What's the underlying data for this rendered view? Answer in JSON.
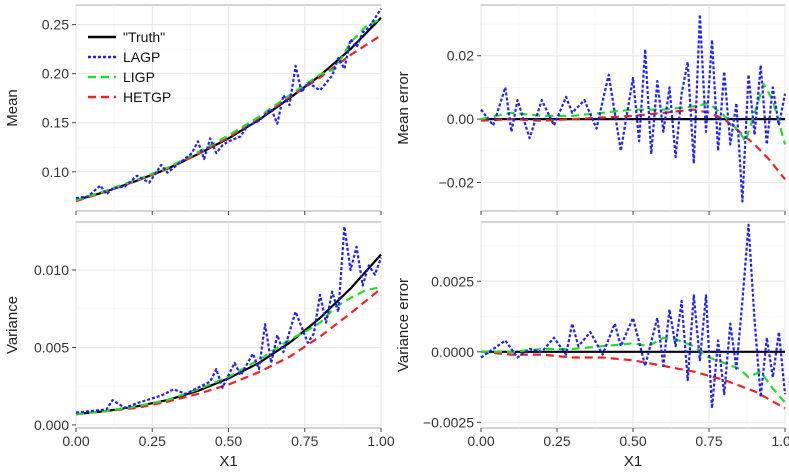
{
  "figure": {
    "xlabel": "X1",
    "colors": {
      "truth": "#000000",
      "lagp": "#1f1fff",
      "ligp": "#22dd22",
      "hetgp": "#ee2222"
    },
    "legend": [
      "\"Truth\"",
      "LAGP",
      "LIGP",
      "HETGP"
    ]
  },
  "chart_data": [
    {
      "id": "mean",
      "type": "line",
      "title": "",
      "xlabel": "",
      "ylabel": "Mean",
      "xlim": [
        0,
        1
      ],
      "ylim": [
        0.06,
        0.27
      ],
      "xticks": [
        "0.00",
        "0.25",
        "0.50",
        "0.75",
        "1.00"
      ],
      "yticks": [
        0.1,
        0.15,
        0.2,
        0.25
      ],
      "ytick_labels": [
        "0.10",
        "0.15",
        "0.20",
        "0.25"
      ],
      "grid": true,
      "legend": "top-left",
      "series": [
        {
          "name": "\"Truth\"",
          "style": "solid",
          "x": [
            0,
            0.1,
            0.2,
            0.3,
            0.4,
            0.5,
            0.6,
            0.7,
            0.8,
            0.9,
            1.0
          ],
          "values": [
            0.071,
            0.08,
            0.091,
            0.103,
            0.118,
            0.134,
            0.153,
            0.175,
            0.198,
            0.225,
            0.257
          ]
        },
        {
          "name": "LAGP",
          "style": "dotted",
          "x": [
            0,
            0.04,
            0.08,
            0.1,
            0.12,
            0.16,
            0.2,
            0.24,
            0.28,
            0.3,
            0.34,
            0.38,
            0.4,
            0.42,
            0.44,
            0.46,
            0.48,
            0.5,
            0.54,
            0.56,
            0.6,
            0.64,
            0.66,
            0.68,
            0.7,
            0.72,
            0.74,
            0.76,
            0.8,
            0.84,
            0.86,
            0.88,
            0.9,
            0.92,
            0.94,
            0.96,
            1.0
          ],
          "values": [
            0.073,
            0.075,
            0.086,
            0.077,
            0.083,
            0.085,
            0.096,
            0.089,
            0.107,
            0.099,
            0.109,
            0.119,
            0.131,
            0.113,
            0.134,
            0.119,
            0.127,
            0.131,
            0.136,
            0.146,
            0.152,
            0.164,
            0.149,
            0.178,
            0.168,
            0.208,
            0.181,
            0.191,
            0.183,
            0.198,
            0.216,
            0.205,
            0.235,
            0.227,
            0.242,
            0.247,
            0.266
          ]
        },
        {
          "name": "LIGP",
          "style": "dashed",
          "x": [
            0,
            0.1,
            0.2,
            0.3,
            0.4,
            0.5,
            0.6,
            0.7,
            0.8,
            0.85,
            0.9,
            0.95,
            1.0
          ],
          "values": [
            0.071,
            0.081,
            0.092,
            0.104,
            0.12,
            0.137,
            0.156,
            0.178,
            0.199,
            0.205,
            0.232,
            0.248,
            0.256
          ]
        },
        {
          "name": "HETGP",
          "style": "dashed",
          "x": [
            0,
            0.1,
            0.2,
            0.3,
            0.4,
            0.5,
            0.6,
            0.7,
            0.8,
            0.9,
            1.0
          ],
          "values": [
            0.07,
            0.08,
            0.091,
            0.103,
            0.118,
            0.135,
            0.155,
            0.176,
            0.196,
            0.219,
            0.239
          ]
        }
      ]
    },
    {
      "id": "mean_error",
      "type": "line",
      "title": "",
      "xlabel": "",
      "ylabel": "Mean error",
      "xlim": [
        0,
        1
      ],
      "ylim": [
        -0.029,
        0.036
      ],
      "xticks": [
        "0.00",
        "0.25",
        "0.50",
        "0.75",
        "1.00"
      ],
      "yticks": [
        -0.02,
        0.0,
        0.02
      ],
      "ytick_labels": [
        "−0.02",
        "0.00",
        "0.02"
      ],
      "grid": true,
      "series": [
        {
          "name": "\"Truth\"",
          "style": "solid",
          "x": [
            0,
            1.0
          ],
          "values": [
            0,
            0
          ]
        },
        {
          "name": "LAGP",
          "style": "dotted",
          "x": [
            0,
            0.04,
            0.08,
            0.1,
            0.12,
            0.16,
            0.2,
            0.24,
            0.28,
            0.3,
            0.34,
            0.38,
            0.42,
            0.46,
            0.5,
            0.52,
            0.54,
            0.56,
            0.58,
            0.6,
            0.62,
            0.64,
            0.66,
            0.68,
            0.7,
            0.72,
            0.74,
            0.76,
            0.78,
            0.8,
            0.82,
            0.84,
            0.86,
            0.88,
            0.9,
            0.92,
            0.94,
            0.96,
            0.98,
            1.0
          ],
          "values": [
            0.003,
            -0.002,
            0.01,
            -0.004,
            0.006,
            -0.006,
            0.006,
            -0.002,
            0.007,
            0.002,
            0.006,
            -0.003,
            0.014,
            -0.01,
            0.013,
            -0.007,
            0.022,
            -0.011,
            0.012,
            -0.004,
            0.01,
            -0.012,
            0.008,
            0.018,
            -0.014,
            0.033,
            -0.004,
            0.025,
            -0.01,
            0.015,
            -0.008,
            0.005,
            -0.026,
            0.014,
            -0.005,
            0.017,
            -0.008,
            0.01,
            -0.002,
            0.008
          ]
        },
        {
          "name": "LIGP",
          "style": "dashed",
          "x": [
            0,
            0.1,
            0.2,
            0.3,
            0.4,
            0.5,
            0.6,
            0.7,
            0.75,
            0.8,
            0.85,
            0.87,
            0.9,
            0.93,
            0.96,
            1.0
          ],
          "values": [
            0.0,
            0.002,
            0.001,
            0.001,
            0.002,
            0.003,
            0.003,
            0.004,
            0.005,
            0.001,
            -0.004,
            -0.007,
            0.002,
            0.011,
            0.006,
            -0.008
          ]
        },
        {
          "name": "HETGP",
          "style": "dashed",
          "x": [
            0,
            0.1,
            0.2,
            0.3,
            0.4,
            0.5,
            0.6,
            0.7,
            0.75,
            0.8,
            0.85,
            0.9,
            0.95,
            1.0
          ],
          "values": [
            -0.0005,
            0.0,
            -0.0005,
            0.0,
            0.0005,
            0.001,
            0.002,
            0.003,
            0.002,
            0.0,
            -0.004,
            -0.008,
            -0.013,
            -0.019
          ]
        }
      ]
    },
    {
      "id": "variance",
      "type": "line",
      "title": "",
      "xlabel": "X1",
      "ylabel": "Variance",
      "xlim": [
        0,
        1
      ],
      "ylim": [
        -0.0002,
        0.0131
      ],
      "xticks": [
        "0.00",
        "0.25",
        "0.50",
        "0.75",
        "1.00"
      ],
      "yticks": [
        0.0,
        0.005,
        0.01
      ],
      "ytick_labels": [
        "0.000",
        "0.005",
        "0.010"
      ],
      "grid": true,
      "series": [
        {
          "name": "\"Truth\"",
          "style": "solid",
          "x": [
            0,
            0.1,
            0.2,
            0.3,
            0.4,
            0.5,
            0.6,
            0.7,
            0.8,
            0.9,
            1.0
          ],
          "values": [
            0.0007,
            0.0009,
            0.0012,
            0.0016,
            0.0022,
            0.003,
            0.004,
            0.0053,
            0.0069,
            0.0088,
            0.011
          ]
        },
        {
          "name": "LAGP",
          "style": "dotted",
          "x": [
            0,
            0.1,
            0.12,
            0.16,
            0.2,
            0.28,
            0.32,
            0.36,
            0.44,
            0.46,
            0.48,
            0.52,
            0.54,
            0.58,
            0.6,
            0.62,
            0.64,
            0.66,
            0.68,
            0.72,
            0.76,
            0.78,
            0.8,
            0.82,
            0.84,
            0.86,
            0.88,
            0.9,
            0.92,
            0.94,
            0.96,
            0.98,
            1.0
          ],
          "values": [
            0.0008,
            0.001,
            0.0016,
            0.0011,
            0.0014,
            0.0019,
            0.0023,
            0.002,
            0.0028,
            0.0036,
            0.0024,
            0.004,
            0.0032,
            0.0046,
            0.0036,
            0.0065,
            0.004,
            0.0058,
            0.0047,
            0.0073,
            0.0053,
            0.0059,
            0.0084,
            0.0066,
            0.0086,
            0.0073,
            0.0128,
            0.01,
            0.0115,
            0.009,
            0.0103,
            0.0097,
            0.0108
          ]
        },
        {
          "name": "LIGP",
          "style": "dashed",
          "x": [
            0,
            0.1,
            0.2,
            0.3,
            0.4,
            0.5,
            0.6,
            0.7,
            0.75,
            0.8,
            0.85,
            0.9,
            0.95,
            1.0
          ],
          "values": [
            0.0007,
            0.0009,
            0.0012,
            0.0016,
            0.0023,
            0.0031,
            0.0042,
            0.0055,
            0.006,
            0.0066,
            0.0076,
            0.0082,
            0.0087,
            0.0089
          ]
        },
        {
          "name": "HETGP",
          "style": "dashed",
          "x": [
            0,
            0.1,
            0.2,
            0.3,
            0.4,
            0.5,
            0.6,
            0.7,
            0.8,
            0.9,
            1.0
          ],
          "values": [
            0.0007,
            0.0009,
            0.0011,
            0.0015,
            0.002,
            0.0026,
            0.0034,
            0.0044,
            0.0057,
            0.0072,
            0.0088
          ]
        }
      ]
    },
    {
      "id": "variance_error",
      "type": "line",
      "title": "",
      "xlabel": "X1",
      "ylabel": "Variance error",
      "xlim": [
        0,
        1
      ],
      "ylim": [
        -0.0027,
        0.0046
      ],
      "xticks": [
        "0.00",
        "0.25",
        "0.50",
        "0.75",
        "1.00"
      ],
      "yticks": [
        -0.0025,
        0.0,
        0.0025
      ],
      "ytick_labels": [
        "−0.0025",
        "0.0000",
        "0.0025"
      ],
      "grid": true,
      "series": [
        {
          "name": "\"Truth\"",
          "style": "solid",
          "x": [
            0,
            1.0
          ],
          "values": [
            0,
            0
          ]
        },
        {
          "name": "LAGP",
          "style": "dotted",
          "x": [
            0,
            0.04,
            0.08,
            0.12,
            0.16,
            0.2,
            0.24,
            0.28,
            0.3,
            0.32,
            0.36,
            0.4,
            0.44,
            0.46,
            0.5,
            0.54,
            0.58,
            0.6,
            0.62,
            0.64,
            0.66,
            0.68,
            0.7,
            0.72,
            0.74,
            0.76,
            0.78,
            0.8,
            0.82,
            0.84,
            0.86,
            0.88,
            0.9,
            0.92,
            0.94,
            0.96,
            0.98,
            1.0
          ],
          "values": [
            -0.0002,
            0.0001,
            0.0004,
            -0.0002,
            0.0001,
            0.0,
            0.0005,
            -0.0001,
            0.001,
            0.0002,
            0.0007,
            -0.0001,
            0.001,
            0.0002,
            0.0012,
            -0.0005,
            0.0012,
            -0.0005,
            0.0015,
            0.0002,
            0.0018,
            -0.001,
            0.002,
            -0.0003,
            0.002,
            -0.002,
            0.0004,
            -0.0015,
            0.001,
            -0.0006,
            0.0018,
            0.0045,
            0.0011,
            -0.0016,
            0.0005,
            -0.0009,
            0.0007,
            -0.0015
          ]
        },
        {
          "name": "LIGP",
          "style": "dashed",
          "x": [
            0,
            0.1,
            0.2,
            0.3,
            0.4,
            0.5,
            0.55,
            0.6,
            0.65,
            0.7,
            0.75,
            0.8,
            0.85,
            0.88,
            0.92,
            0.96,
            1.0
          ],
          "values": [
            0.0,
            0.0,
            0.0001,
            0.0001,
            0.0002,
            0.0003,
            0.0002,
            0.0005,
            0.0004,
            0.0002,
            -0.0002,
            -0.0004,
            -0.0006,
            -0.0009,
            -0.0007,
            -0.0013,
            -0.0018
          ]
        },
        {
          "name": "HETGP",
          "style": "dashed",
          "x": [
            0,
            0.1,
            0.2,
            0.3,
            0.4,
            0.5,
            0.6,
            0.7,
            0.8,
            0.9,
            1.0
          ],
          "values": [
            0.0,
            -0.0001,
            -0.0001,
            -0.0002,
            -0.0002,
            -0.0003,
            -0.0005,
            -0.0007,
            -0.001,
            -0.0014,
            -0.002
          ]
        }
      ]
    }
  ]
}
